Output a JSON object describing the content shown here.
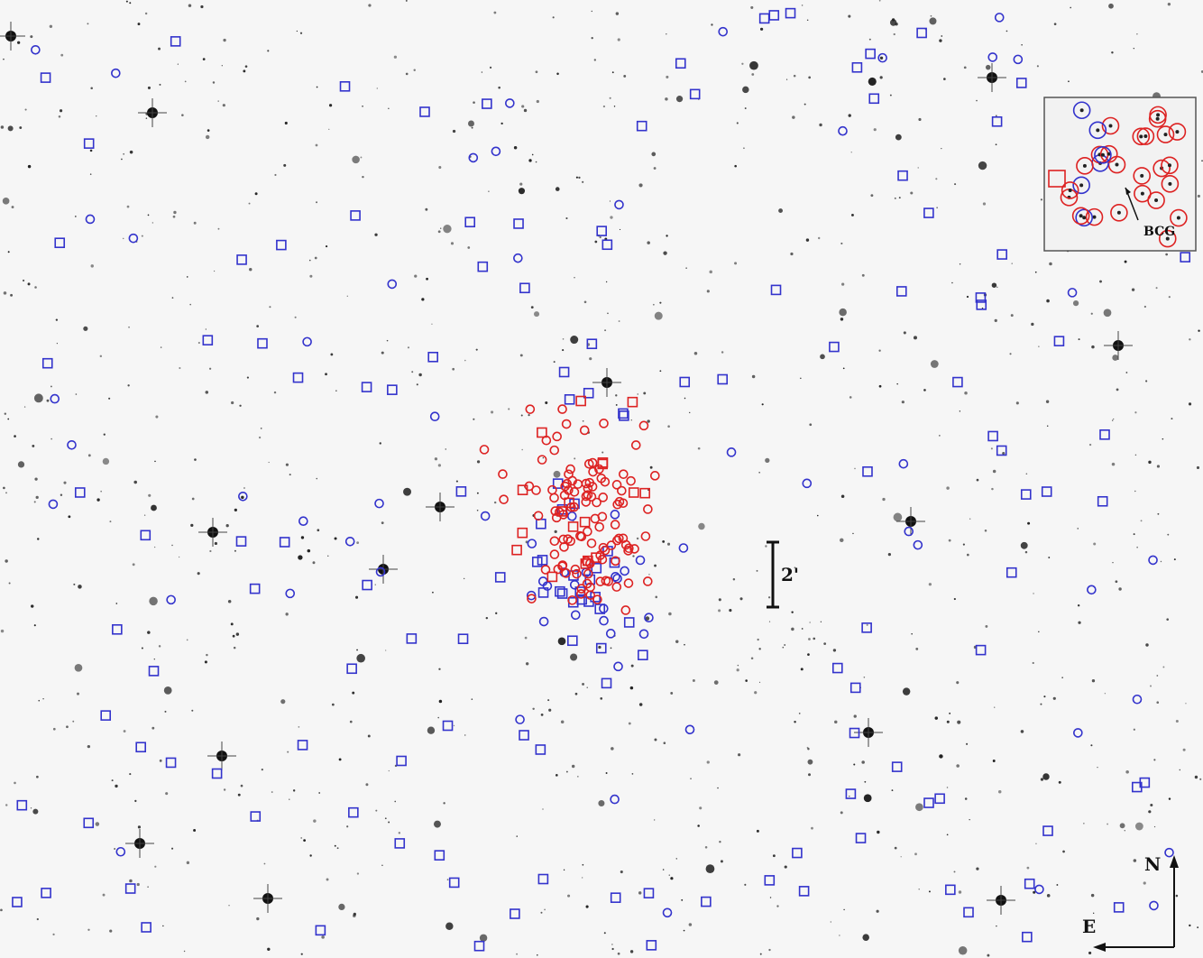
{
  "scale_bar": {
    "label": "2'"
  },
  "compass": {
    "north": "N",
    "east": "E"
  },
  "inset": {
    "label": "BCG"
  }
}
